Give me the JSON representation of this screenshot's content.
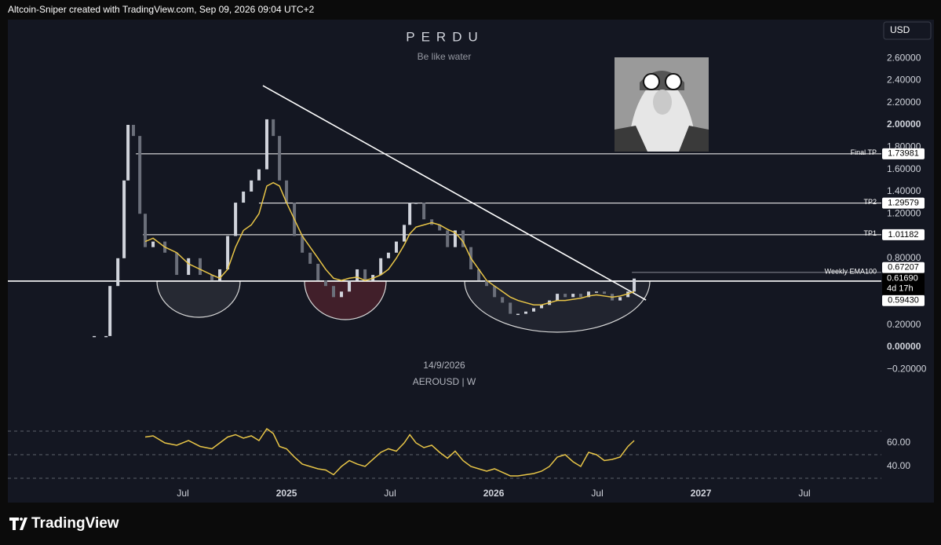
{
  "header": "Altcoin-Sniper created with TradingView.com, Sep 09, 2026 09:04 UTC+2",
  "footer": "TradingView",
  "chart_data": {
    "type": "candlestick",
    "title": "PERDU",
    "subtitle": "Be like water",
    "date": "14/9/2026",
    "symbol": "AEROUSD | W",
    "currency": "USD",
    "grid": false,
    "x": [
      2024.072,
      2024.129,
      2024.148,
      2024.186,
      2024.216,
      2024.235,
      2024.261,
      2024.292,
      2024.318,
      2024.356,
      2024.413,
      2024.47,
      2024.527,
      2024.583,
      2024.64,
      2024.678,
      2024.716,
      2024.754,
      2024.792,
      2024.83,
      2024.867,
      2024.905,
      2024.936,
      2024.966,
      2025,
      2025.038,
      2025.076,
      2025.114,
      2025.152,
      2025.189,
      2025.227,
      2025.265,
      2025.303,
      2025.341,
      2025.379,
      2025.417,
      2025.455,
      2025.492,
      2025.53,
      2025.568,
      2025.595,
      2025.625,
      2025.663,
      2025.701,
      2025.739,
      2025.777,
      2025.814,
      2025.852,
      2025.89,
      2025.928,
      2025.966,
      2026.004,
      2026.042,
      2026.08,
      2026.117,
      2026.155,
      2026.193,
      2026.231,
      2026.269,
      2026.307,
      2026.345,
      2026.383,
      2026.42,
      2026.458,
      2026.496,
      2026.534,
      2026.572,
      2026.61,
      2026.648,
      2026.678
    ],
    "series": [
      {
        "type": "candlestick",
        "color": "#d1d4dc",
        "values": [
          0.1,
          0.1,
          0.55,
          0.8,
          1.5,
          2.0,
          1.9,
          1.2,
          0.9,
          0.95,
          0.85,
          0.65,
          0.8,
          0.65,
          0.6,
          0.7,
          1.0,
          1.3,
          1.4,
          1.5,
          1.6,
          2.05,
          1.9,
          1.5,
          1.3,
          1.0,
          0.85,
          0.75,
          0.6,
          0.55,
          0.45,
          0.5,
          0.6,
          0.7,
          0.6,
          0.65,
          0.8,
          0.85,
          0.95,
          1.1,
          1.3,
          1.3,
          1.15,
          1.1,
          1.05,
          0.9,
          1.05,
          0.9,
          0.7,
          0.6,
          0.55,
          0.45,
          0.4,
          0.3,
          0.3,
          0.32,
          0.35,
          0.38,
          0.42,
          0.48,
          0.45,
          0.48,
          0.45,
          0.5,
          0.5,
          0.48,
          0.42,
          0.45,
          0.5,
          0.6169
        ]
      },
      {
        "type": "line",
        "color": "#e8c547",
        "values": [
          null,
          null,
          null,
          null,
          null,
          null,
          null,
          null,
          0.95,
          0.98,
          0.9,
          0.85,
          0.75,
          0.7,
          0.65,
          0.62,
          0.7,
          0.9,
          1.05,
          1.1,
          1.2,
          1.45,
          1.48,
          1.45,
          1.3,
          1.15,
          1.0,
          0.9,
          0.8,
          0.7,
          0.62,
          0.6,
          0.62,
          0.63,
          0.6,
          0.62,
          0.65,
          0.7,
          0.8,
          0.92,
          1.02,
          1.08,
          1.1,
          1.12,
          1.1,
          1.06,
          1.03,
          0.95,
          0.8,
          0.7,
          0.6,
          0.55,
          0.5,
          0.45,
          0.42,
          0.4,
          0.38,
          0.38,
          0.4,
          0.42,
          0.42,
          0.43,
          0.44,
          0.46,
          0.47,
          0.46,
          0.45,
          0.46,
          0.48,
          0.5
        ]
      },
      {
        "type": "line",
        "axis": "y2",
        "color": "#e8c547",
        "values": [
          null,
          null,
          null,
          null,
          null,
          null,
          null,
          null,
          65,
          66,
          60,
          58,
          62,
          57,
          55,
          60,
          65,
          67,
          64,
          66,
          62,
          72,
          68,
          57,
          55,
          48,
          42,
          40,
          38,
          37,
          33,
          40,
          45,
          42,
          40,
          46,
          52,
          55,
          53,
          60,
          67,
          60,
          56,
          58,
          52,
          47,
          53,
          45,
          40,
          38,
          36,
          38,
          35,
          32,
          32,
          33,
          34,
          36,
          40,
          48,
          50,
          44,
          40,
          52,
          50,
          45,
          46,
          48,
          57,
          62
        ]
      }
    ],
    "xlim": [
      2023.655,
      2027.871
    ],
    "xticks": [
      {
        "value": 2024.5,
        "label": "Jul"
      },
      2025,
      {
        "value": 2025.5,
        "label": "Jul"
      },
      2026,
      {
        "value": 2026.5,
        "label": "Jul"
      },
      2027,
      {
        "value": 2027.5,
        "label": "Jul"
      }
    ],
    "ylim": [
      -0.657,
      2.947
    ],
    "yticks": [
      {
        "value": 2.6,
        "label": "2.60000"
      },
      {
        "value": 2.4,
        "label": "2.40000"
      },
      {
        "value": 2.2,
        "label": "2.20000"
      },
      {
        "value": 2.0,
        "label": "2.00000"
      },
      {
        "value": 1.8,
        "label": "1.80000"
      },
      {
        "value": 1.6,
        "label": "1.60000"
      },
      {
        "value": 1.4,
        "label": "1.40000"
      },
      {
        "value": 1.2,
        "label": "1.20000"
      },
      {
        "value": 0.8,
        "label": "0.80000"
      },
      {
        "value": 0.2,
        "label": "0.20000"
      },
      {
        "value": 0,
        "label": "0.00000"
      },
      {
        "value": -0.2,
        "label": "−0.20000"
      }
    ],
    "y2lim": [
      9.3,
      76
    ],
    "y2ticks": [
      {
        "value": 60,
        "label": "60.00"
      },
      {
        "value": 40,
        "label": "40.00"
      }
    ],
    "y2levels": [
      70,
      50,
      30
    ],
    "levels": [
      {
        "name": "Final TP",
        "value": 1.73981,
        "label": "1.73981",
        "start": 2024.273,
        "color": "#ffffff"
      },
      {
        "name": "TP2",
        "value": 1.29579,
        "label": "1.29579",
        "start": 2024.867,
        "color": "#ffffff"
      },
      {
        "name": "TP1",
        "value": 1.01182,
        "label": "1.01182",
        "start": 2024.307,
        "color": "#ffffff"
      },
      {
        "name": "Weekly EMA100",
        "value": 0.67207,
        "label": "0.67207",
        "start": 2026.667,
        "color": "#8a8d96"
      },
      {
        "value": 0.5943,
        "label": "0.59430",
        "color": "#ffffff"
      }
    ],
    "last_price": {
      "value": 0.6169,
      "label": "0.61690",
      "countdown": "4d 17h"
    },
    "trendline": {
      "x": [
        2024.886,
        2026.735
      ],
      "values": [
        2.353,
        0.424
      ],
      "color": "#ffffff"
    }
  }
}
